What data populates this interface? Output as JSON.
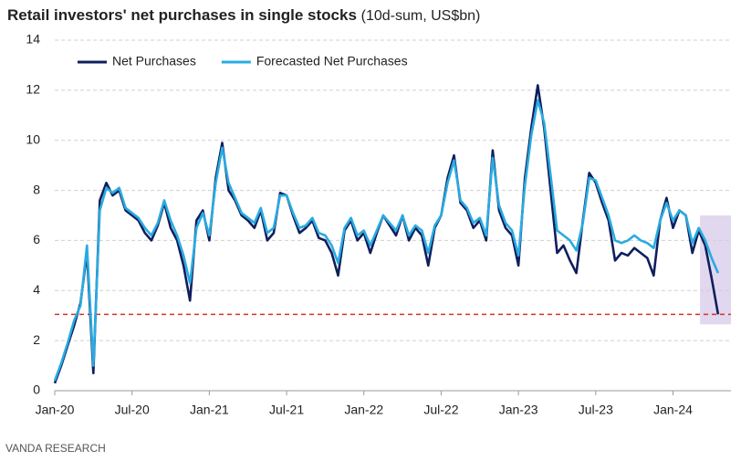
{
  "chart_data": {
    "type": "line",
    "title": "Retail investors' net purchases in single stocks",
    "subtitle": "(10d-sum, US$bn)",
    "source": "VANDA RESEARCH",
    "x": [
      0,
      0.5,
      1,
      1.5,
      2,
      2.5,
      3,
      3.5,
      4,
      4.5,
      5,
      5.5,
      6,
      6.5,
      7,
      7.5,
      8,
      8.5,
      9,
      9.5,
      10,
      10.5,
      11,
      11.5,
      12,
      12.5,
      13,
      13.5,
      14,
      14.5,
      15,
      15.5,
      16,
      16.5,
      17,
      17.5,
      18,
      18.5,
      19,
      19.5,
      20,
      20.5,
      21,
      21.5,
      22,
      22.5,
      23,
      23.5,
      24,
      24.5,
      25,
      25.5,
      26,
      26.5,
      27,
      27.5,
      28,
      28.5,
      29,
      29.5,
      30,
      30.5,
      31,
      31.5,
      32,
      32.5,
      33,
      33.5,
      34,
      34.5,
      35,
      35.5,
      36,
      36.5,
      37,
      37.5,
      38,
      38.5,
      39,
      39.5,
      40,
      40.5,
      41,
      41.5,
      42,
      42.5,
      43,
      43.5,
      44,
      44.5,
      45,
      45.5,
      46,
      46.5,
      47,
      47.5,
      48,
      48.5,
      49,
      49.5,
      50,
      50.5,
      51,
      51.5
    ],
    "series": [
      {
        "name": "Net Purchases",
        "color": "#0f1f5c",
        "values": [
          0.3,
          1.0,
          1.8,
          2.6,
          3.5,
          5.5,
          0.7,
          7.6,
          8.3,
          7.8,
          8.0,
          7.2,
          7.0,
          6.8,
          6.3,
          6.0,
          6.6,
          7.5,
          6.5,
          6.0,
          5.0,
          3.6,
          6.8,
          7.2,
          6.0,
          8.5,
          9.9,
          8.0,
          7.6,
          7.0,
          6.8,
          6.5,
          7.2,
          6.0,
          6.3,
          7.9,
          7.8,
          7.0,
          6.3,
          6.5,
          6.8,
          6.1,
          6.0,
          5.5,
          4.6,
          6.4,
          6.8,
          6.0,
          6.3,
          5.5,
          6.3,
          7.0,
          6.6,
          6.2,
          7.0,
          6.0,
          6.5,
          6.2,
          5.0,
          6.5,
          7.0,
          8.5,
          9.4,
          7.5,
          7.2,
          6.5,
          6.8,
          6.0,
          9.6,
          7.2,
          6.5,
          6.2,
          5.0,
          8.5,
          10.5,
          12.2,
          10.5,
          8.0,
          5.5,
          5.8,
          5.2,
          4.7,
          6.8,
          8.7,
          8.3,
          7.5,
          6.8,
          5.2,
          5.5,
          5.4,
          5.7,
          5.5,
          5.3,
          4.6,
          6.8,
          7.7,
          6.5,
          7.2,
          7.0,
          5.5,
          6.4,
          5.8,
          4.5,
          3.05
        ]
      },
      {
        "name": "Forecasted Net Purchases",
        "color": "#29abe2",
        "values": [
          0.4,
          1.1,
          1.9,
          2.8,
          3.4,
          5.8,
          1.0,
          7.2,
          8.1,
          7.9,
          8.1,
          7.3,
          7.1,
          6.9,
          6.5,
          6.2,
          6.7,
          7.6,
          6.8,
          6.2,
          5.4,
          4.3,
          6.5,
          7.1,
          6.2,
          8.3,
          9.7,
          8.3,
          7.7,
          7.1,
          6.9,
          6.7,
          7.3,
          6.3,
          6.5,
          7.8,
          7.8,
          7.1,
          6.5,
          6.6,
          6.9,
          6.3,
          6.2,
          5.8,
          5.1,
          6.5,
          6.9,
          6.2,
          6.4,
          5.8,
          6.4,
          7.0,
          6.7,
          6.4,
          7.0,
          6.2,
          6.6,
          6.4,
          5.5,
          6.6,
          7.0,
          8.3,
          9.2,
          7.6,
          7.3,
          6.7,
          6.9,
          6.2,
          9.3,
          7.4,
          6.7,
          6.4,
          5.4,
          8.2,
          10.2,
          11.6,
          10.7,
          8.6,
          6.4,
          6.2,
          6.0,
          5.6,
          6.7,
          8.5,
          8.4,
          7.7,
          7.0,
          6.0,
          5.9,
          6.0,
          6.2,
          6.0,
          5.9,
          5.7,
          6.8,
          7.5,
          6.8,
          7.2,
          7.0,
          5.9,
          6.5,
          6.0,
          5.3,
          4.7
        ]
      }
    ],
    "xlim": [
      0,
      52.5
    ],
    "xticks": [
      {
        "value": 0,
        "label": "Jan-20"
      },
      {
        "value": 6,
        "label": "Jul-20"
      },
      {
        "value": 12,
        "label": "Jan-21"
      },
      {
        "value": 18,
        "label": "Jul-21"
      },
      {
        "value": 24,
        "label": "Jan-22"
      },
      {
        "value": 30,
        "label": "Jul-22"
      },
      {
        "value": 36,
        "label": "Jan-23"
      },
      {
        "value": 42,
        "label": "Jul-23"
      },
      {
        "value": 48,
        "label": "Jan-24"
      }
    ],
    "ylim": [
      0,
      14
    ],
    "yticks": [
      0,
      2,
      4,
      6,
      8,
      10,
      12,
      14
    ],
    "grid": true,
    "legend": "top-left",
    "reference_line": {
      "value": 3.05,
      "color": "#d9312b"
    },
    "highlight": {
      "x": [
        50.1,
        52.5
      ],
      "y": [
        2.65,
        7.0
      ],
      "color": "#d9cdeb"
    }
  }
}
